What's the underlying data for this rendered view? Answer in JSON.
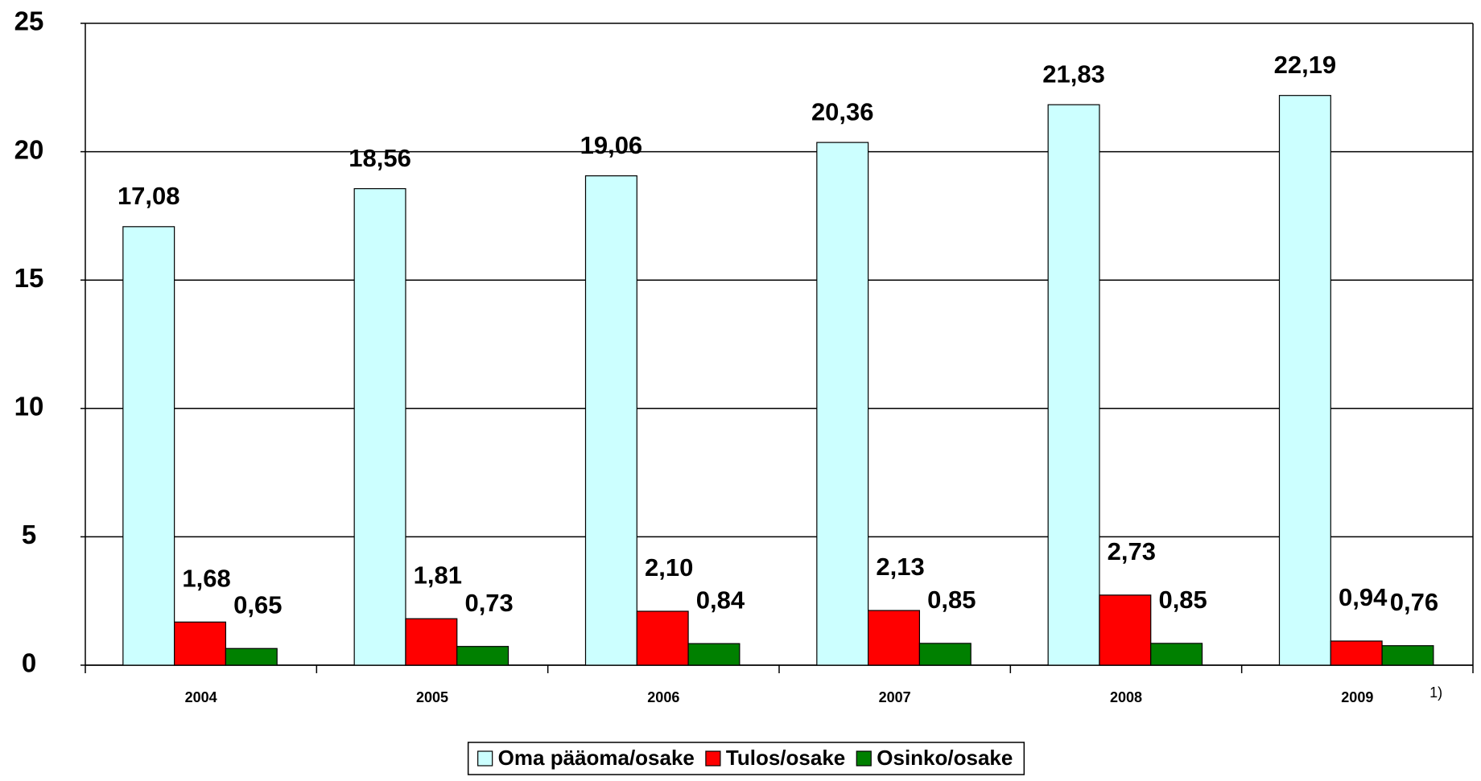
{
  "chart_data": {
    "type": "bar",
    "categories": [
      "2004",
      "2005",
      "2006",
      "2007",
      "2008",
      "2009"
    ],
    "series": [
      {
        "name": "Oma pääoma/osake",
        "color": "#ccffff",
        "values": [
          17.08,
          18.56,
          19.06,
          20.36,
          21.83,
          22.19
        ],
        "value_labels": [
          "17,08",
          "18,56",
          "19,06",
          "20,36",
          "21,83",
          "22,19"
        ]
      },
      {
        "name": "Tulos/osake",
        "color": "#ff0000",
        "values": [
          1.68,
          1.81,
          2.1,
          2.13,
          2.73,
          0.94
        ],
        "value_labels": [
          "1,68",
          "1,81",
          "2,10",
          "2,13",
          "2,73",
          "0,94"
        ]
      },
      {
        "name": "Osinko/osake",
        "color": "#008000",
        "values": [
          0.65,
          0.73,
          0.84,
          0.85,
          0.85,
          0.76
        ],
        "value_labels": [
          "0,65",
          "0,73",
          "0,84",
          "0,85",
          "0,85",
          "0,76"
        ]
      }
    ],
    "ylim": [
      0,
      25
    ],
    "yticks": [
      0,
      5,
      10,
      15,
      20,
      25
    ],
    "grid": true,
    "annotation": "1)"
  }
}
